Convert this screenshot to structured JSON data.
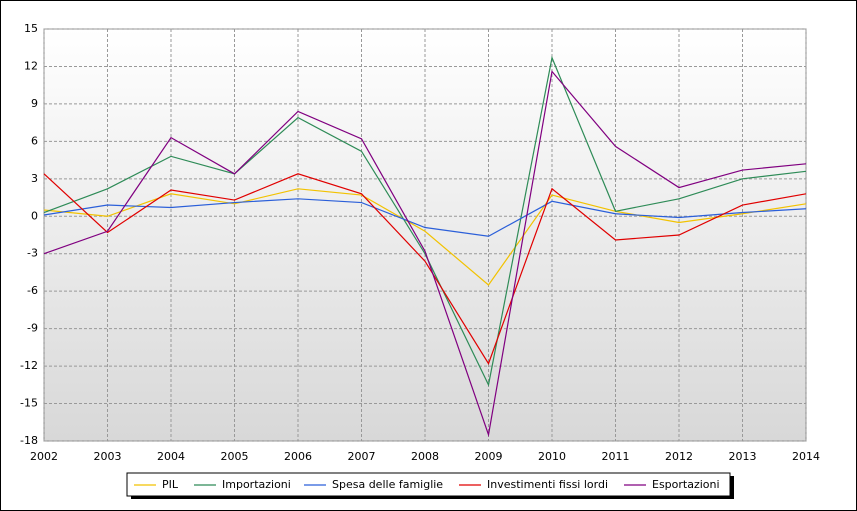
{
  "chart_data": {
    "type": "line",
    "categories": [
      "2002",
      "2003",
      "2004",
      "2005",
      "2006",
      "2007",
      "2008",
      "2009",
      "2010",
      "2011",
      "2012",
      "2013",
      "2014"
    ],
    "series": [
      {
        "name": "PIL",
        "color": "#f2c200",
        "values": [
          0.5,
          0,
          1.8,
          1.0,
          2.2,
          1.7,
          -1.2,
          -5.5,
          1.7,
          0.4,
          -0.5,
          0.2,
          1.0
        ]
      },
      {
        "name": "Importazioni",
        "color": "#2e8b57",
        "values": [
          0.3,
          2.2,
          4.8,
          3.4,
          7.9,
          5.2,
          -3.0,
          -13.5,
          12.7,
          0.4,
          1.4,
          3.0,
          3.6
        ]
      },
      {
        "name": "Spesa delle famiglie",
        "color": "#2b5fd9",
        "values": [
          0.1,
          0.9,
          0.7,
          1.1,
          1.4,
          1.1,
          -0.9,
          -1.6,
          1.2,
          0.2,
          -0.1,
          0.3,
          0.6
        ]
      },
      {
        "name": "Investimenti fissi lordi",
        "color": "#e00000",
        "values": [
          3.4,
          -1.3,
          2.1,
          1.3,
          3.4,
          1.8,
          -3.6,
          -11.8,
          2.2,
          -1.9,
          -1.5,
          0.9,
          1.8
        ]
      },
      {
        "name": "Esportazioni",
        "color": "#800080",
        "values": [
          -3.0,
          -1.2,
          6.3,
          3.4,
          8.4,
          6.2,
          -2.8,
          -17.5,
          11.6,
          5.6,
          2.3,
          3.7,
          4.2
        ]
      }
    ],
    "ylim": [
      -18,
      15
    ],
    "yticks": [
      -18,
      -15,
      -12,
      -9,
      -6,
      -3,
      0,
      3,
      6,
      9,
      12,
      15
    ],
    "grid": true
  }
}
